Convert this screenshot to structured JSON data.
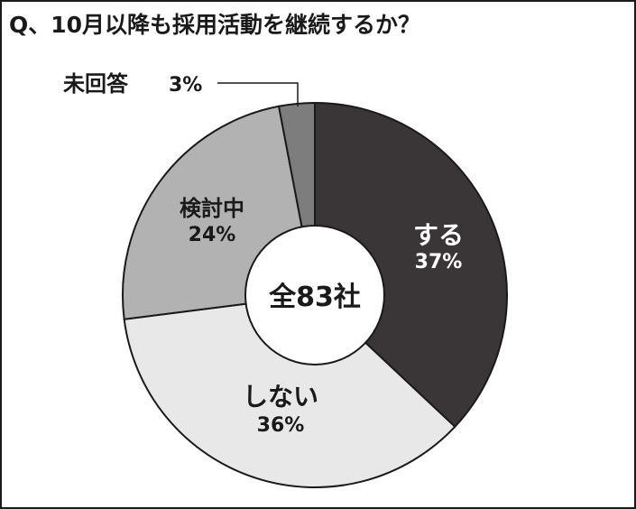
{
  "title": "Q、10月以降も採用活動を継続するか？",
  "center_label": "全83社",
  "chart_data": {
    "type": "pie",
    "title": "Q、10月以降も採用活動を継続するか？",
    "total_label": "全83社",
    "slices": [
      {
        "label": "する",
        "value": 37,
        "value_label": "37%",
        "color": "#3a3536",
        "text_color": "#ffffff"
      },
      {
        "label": "しない",
        "value": 36,
        "value_label": "36%",
        "color": "#e8e8e8",
        "text_color": "#1a1a1a"
      },
      {
        "label": "検討中",
        "value": 24,
        "value_label": "24%",
        "color": "#b2b2b2",
        "text_color": "#1a1a1a"
      },
      {
        "label": "未回答",
        "value": 3,
        "value_label": "3%",
        "color": "#7d7d7d",
        "text_color": "#1a1a1a"
      }
    ],
    "start_angle": "12 o'clock",
    "direction": "clockwise",
    "donut": true
  }
}
